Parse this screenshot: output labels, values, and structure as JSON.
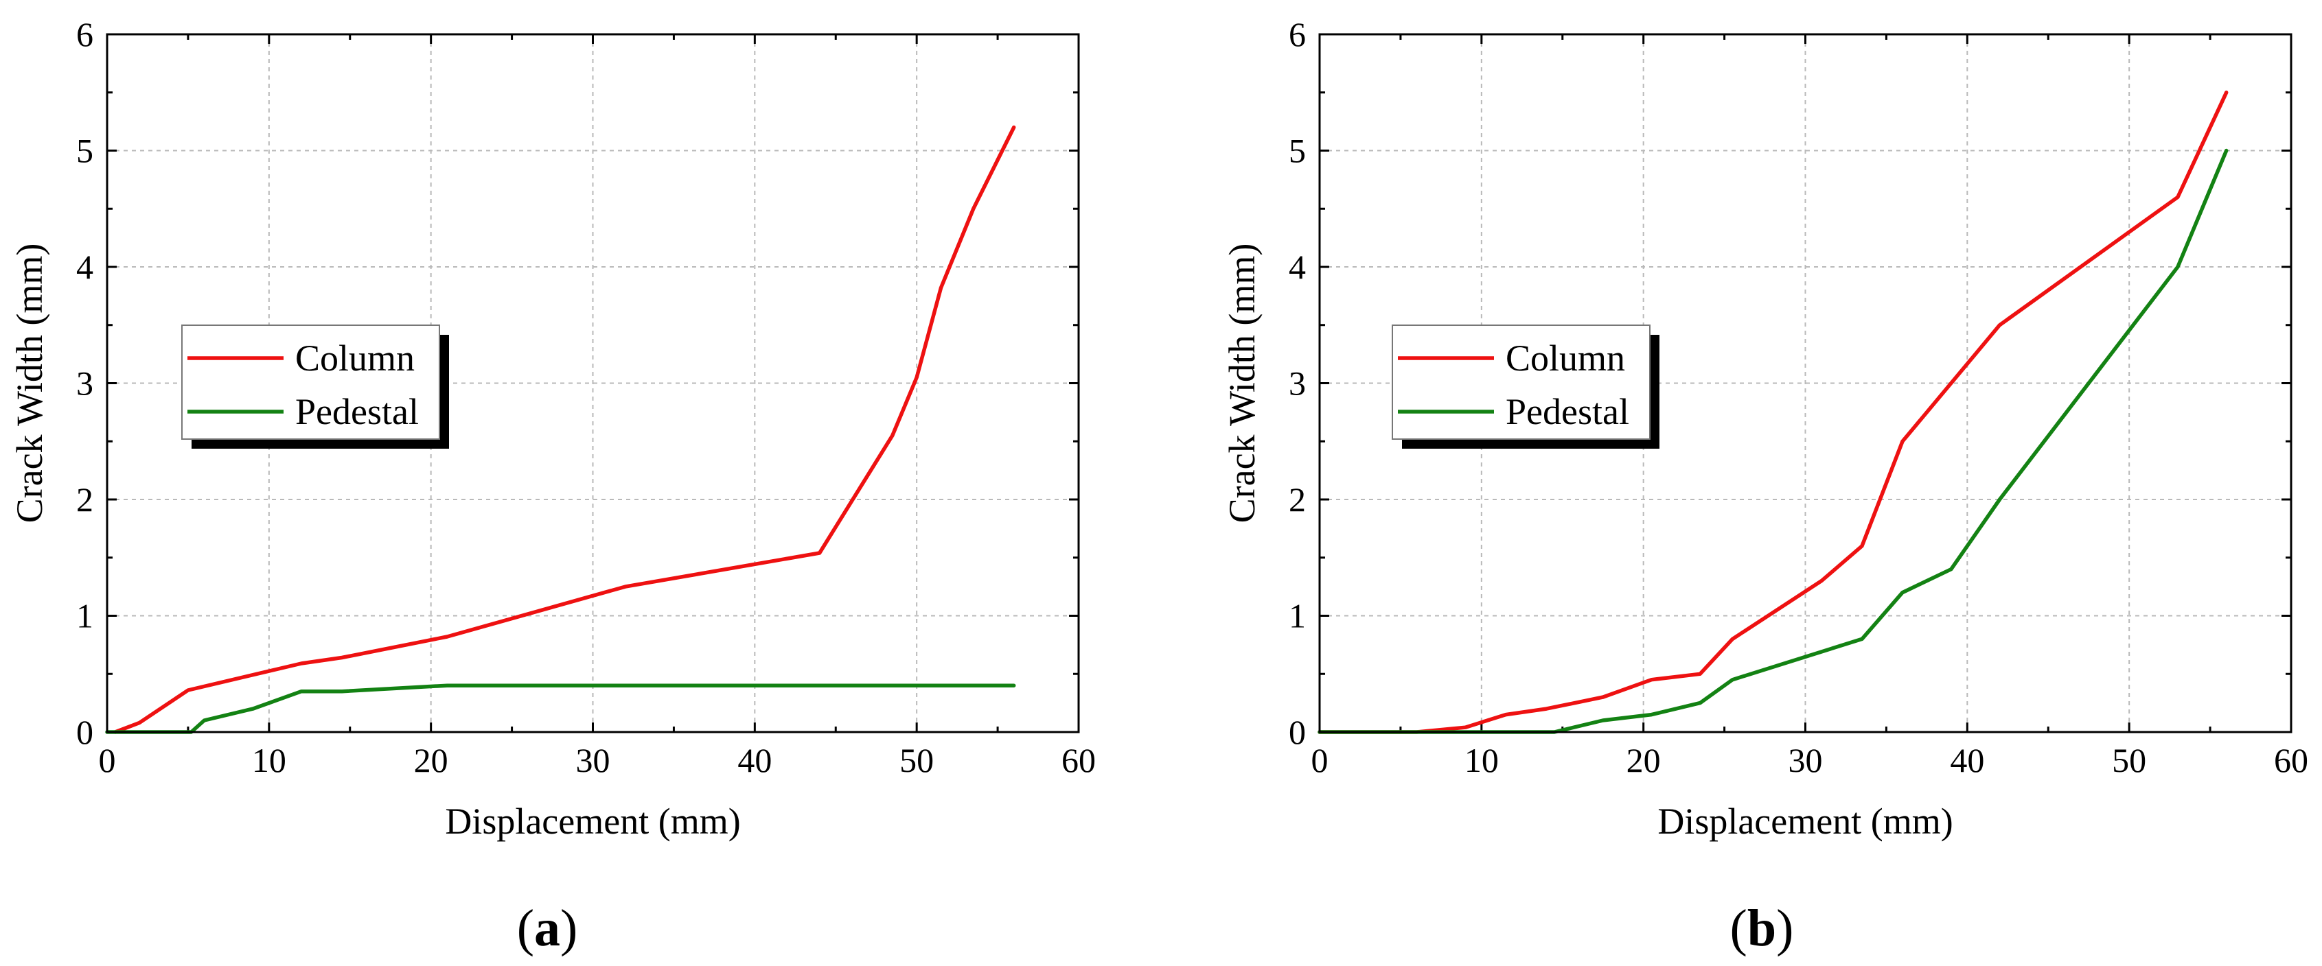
{
  "chart_data": [
    {
      "type": "line",
      "panel_label": "(a)",
      "panel_letter": "a",
      "title": "",
      "xlabel": "Displacement (mm)",
      "ylabel": "Crack Width (mm)",
      "xlim": [
        0,
        60
      ],
      "ylim": [
        0,
        6
      ],
      "xticks": [
        0,
        10,
        20,
        30,
        40,
        50,
        60
      ],
      "yticks": [
        0,
        1,
        2,
        3,
        4,
        5,
        6
      ],
      "grid": true,
      "legend_position": "middle-left",
      "series": [
        {
          "name": "Column",
          "color": "#ee1111",
          "points": [
            [
              0.5,
              0
            ],
            [
              2,
              0.08
            ],
            [
              5,
              0.36
            ],
            [
              12,
              0.59
            ],
            [
              14.5,
              0.64
            ],
            [
              21,
              0.82
            ],
            [
              32,
              1.25
            ],
            [
              44,
              1.54
            ],
            [
              48.5,
              2.55
            ],
            [
              50,
              3.05
            ],
            [
              51.5,
              3.82
            ],
            [
              53.5,
              4.5
            ],
            [
              56,
              5.2
            ]
          ]
        },
        {
          "name": "Pedestal",
          "color": "#138213",
          "points": [
            [
              0,
              0
            ],
            [
              5.2,
              0
            ],
            [
              6,
              0.1
            ],
            [
              9,
              0.2
            ],
            [
              12,
              0.35
            ],
            [
              14.5,
              0.35
            ],
            [
              21,
              0.4
            ],
            [
              56,
              0.4
            ]
          ]
        }
      ]
    },
    {
      "type": "line",
      "panel_label": "(b)",
      "panel_letter": "b",
      "title": "",
      "xlabel": "Displacement (mm)",
      "ylabel": "Crack Width (mm)",
      "xlim": [
        0,
        60
      ],
      "ylim": [
        0,
        6
      ],
      "xticks": [
        0,
        10,
        20,
        30,
        40,
        50,
        60
      ],
      "yticks": [
        0,
        1,
        2,
        3,
        4,
        5,
        6
      ],
      "grid": true,
      "legend_position": "middle-left",
      "series": [
        {
          "name": "Column",
          "color": "#ee1111",
          "points": [
            [
              0,
              0
            ],
            [
              6,
              0
            ],
            [
              9,
              0.04
            ],
            [
              11.5,
              0.15
            ],
            [
              14,
              0.2
            ],
            [
              17.5,
              0.3
            ],
            [
              20.5,
              0.45
            ],
            [
              23.5,
              0.5
            ],
            [
              25.5,
              0.8
            ],
            [
              31,
              1.3
            ],
            [
              33.5,
              1.6
            ],
            [
              36,
              2.5
            ],
            [
              42,
              3.5
            ],
            [
              53,
              4.6
            ],
            [
              56,
              5.5
            ]
          ]
        },
        {
          "name": "Pedestal",
          "color": "#138213",
          "points": [
            [
              0,
              0
            ],
            [
              14.5,
              0
            ],
            [
              17.5,
              0.1
            ],
            [
              20.5,
              0.15
            ],
            [
              23.5,
              0.25
            ],
            [
              25.5,
              0.45
            ],
            [
              33.5,
              0.8
            ],
            [
              36,
              1.2
            ],
            [
              39,
              1.4
            ],
            [
              42,
              2.0
            ],
            [
              53,
              4.0
            ],
            [
              56,
              5.0
            ]
          ]
        }
      ]
    }
  ]
}
